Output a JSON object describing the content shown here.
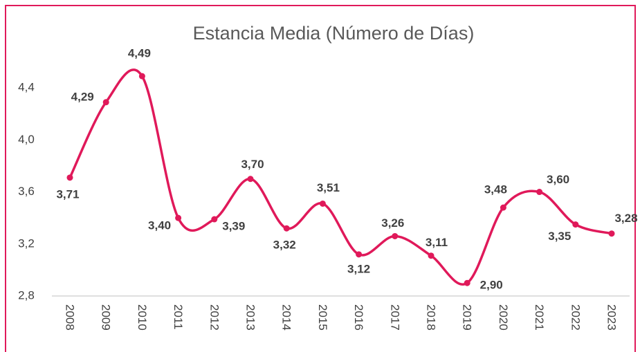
{
  "chart_data": {
    "type": "line",
    "title": "Estancia Media (Número de Días)",
    "categories": [
      "2008",
      "2009",
      "2010",
      "2011",
      "2012",
      "2013",
      "2014",
      "2015",
      "2016",
      "2017",
      "2018",
      "2019",
      "2020",
      "2021",
      "2022",
      "2023"
    ],
    "series": [
      {
        "name": "Estancia Media",
        "color": "#e0195a",
        "values": [
          3.71,
          4.29,
          4.49,
          3.4,
          3.39,
          3.7,
          3.32,
          3.51,
          3.12,
          3.26,
          3.11,
          2.9,
          3.48,
          3.6,
          3.35,
          3.28
        ],
        "value_labels": [
          "3,71",
          "4,29",
          "4,49",
          "3,40",
          "3,39",
          "3,70",
          "3,32",
          "3,51",
          "3,12",
          "3,26",
          "3,11",
          "2,90",
          "3,48",
          "3,60",
          "3,35",
          "3,28"
        ]
      }
    ],
    "ylim": [
      2.8,
      4.6
    ],
    "yticks": [
      {
        "value": 2.8,
        "label": "2,8"
      },
      {
        "value": 3.2,
        "label": "3,2"
      },
      {
        "value": 3.6,
        "label": "3,6"
      },
      {
        "value": 4.0,
        "label": "4,0"
      },
      {
        "value": 4.4,
        "label": "4,4"
      }
    ],
    "grid": false
  }
}
